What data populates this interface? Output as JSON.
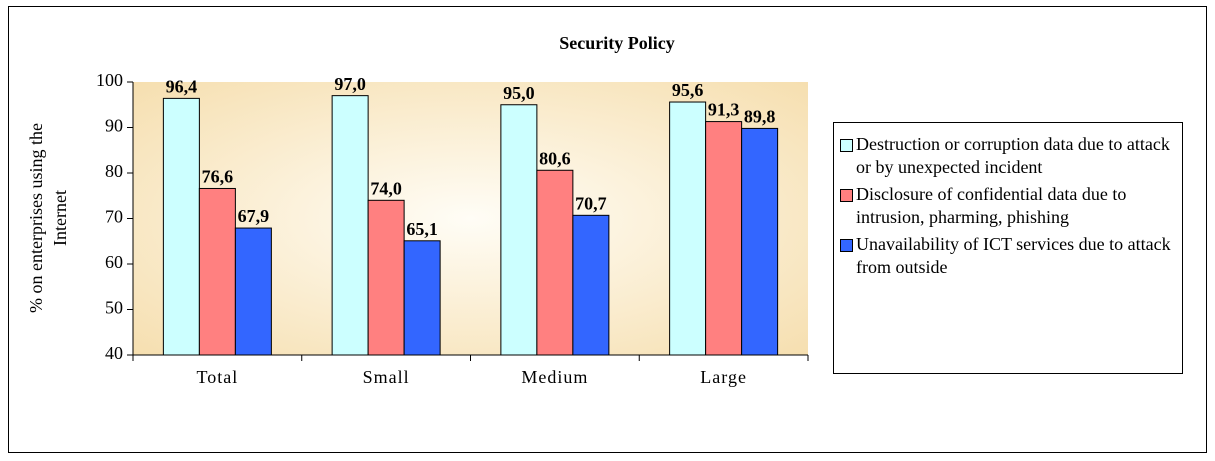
{
  "chart_data": {
    "type": "bar",
    "title": "Security Policy",
    "ylabel": [
      "% on enterprises using the",
      "Internet"
    ],
    "categories": [
      "Total",
      "Small",
      "Medium",
      "Large"
    ],
    "series": [
      {
        "name": "Destruction or corruption data due to attack or by unexpected incident",
        "color": "#ccffff",
        "values": [
          96.4,
          97.0,
          95.0,
          95.6
        ],
        "value_labels": [
          "96,4",
          "97,0",
          "95,0",
          "95,6"
        ]
      },
      {
        "name": "Disclosure of confidential data due to intrusion, pharming, phishing",
        "color": "#ff8080",
        "values": [
          76.6,
          74.0,
          80.6,
          91.3
        ],
        "value_labels": [
          "76,6",
          "74,0",
          "80,6",
          "91,3"
        ]
      },
      {
        "name": "Unavailability of ICT services due to attack from outside",
        "color": "#3366ff",
        "values": [
          67.9,
          65.1,
          70.7,
          89.8
        ],
        "value_labels": [
          "67,9",
          "65,1",
          "70,7",
          "89,8"
        ]
      }
    ],
    "ylim": [
      40,
      100
    ],
    "yticks": [
      40,
      50,
      60,
      70,
      80,
      90,
      100
    ],
    "legend": "right"
  }
}
